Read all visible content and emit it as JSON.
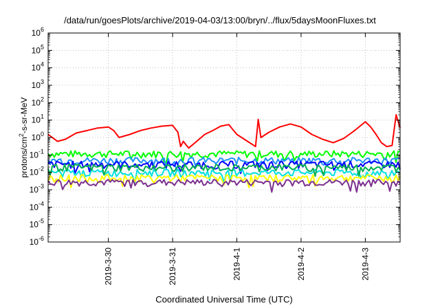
{
  "chart_data": {
    "type": "line",
    "title": "/data/run/goesPlots/archive/2019-04-03/13:00/bryn/../flux/5daysMoonFluxes.txt",
    "xlabel": "Coordinated Universal Time (UTC)",
    "ylabel_parts": [
      "protons/cm",
      "2",
      "-s-sr-MeV"
    ],
    "yscale": "log",
    "ylim": [
      1e-06,
      1000000.0
    ],
    "xlim": [
      "2019-03-29 01:30",
      "2019-04-03 13:00"
    ],
    "grid": true,
    "legend": "none",
    "yticks": [
      {
        "base": "10",
        "exp": "-6",
        "value": 1e-06
      },
      {
        "base": "10",
        "exp": "-5",
        "value": 1e-05
      },
      {
        "base": "10",
        "exp": "-4",
        "value": 0.0001
      },
      {
        "base": "10",
        "exp": "-3",
        "value": 0.001
      },
      {
        "base": "10",
        "exp": "-2",
        "value": 0.01
      },
      {
        "base": "10",
        "exp": "-1",
        "value": 0.1
      },
      {
        "base": "10",
        "exp": "0",
        "value": 1
      },
      {
        "base": "10",
        "exp": "1",
        "value": 10.0
      },
      {
        "base": "10",
        "exp": "2",
        "value": 100.0
      },
      {
        "base": "10",
        "exp": "3",
        "value": 1000.0
      },
      {
        "base": "10",
        "exp": "4",
        "value": 10000.0
      },
      {
        "base": "10",
        "exp": "5",
        "value": 100000.0
      },
      {
        "base": "10",
        "exp": "6",
        "value": 1000000.0
      }
    ],
    "xticks": [
      {
        "label": "2019-3-30",
        "value": "2019-03-30 00:00"
      },
      {
        "label": "2019-3-31",
        "value": "2019-03-31 00:00"
      },
      {
        "label": "2019-4-1",
        "value": "2019-04-01 00:00"
      },
      {
        "label": "2019-4-2",
        "value": "2019-04-02 00:00"
      },
      {
        "label": "2019-4-3",
        "value": "2019-04-03 00:00"
      }
    ],
    "series": [
      {
        "color": "#ff0000",
        "values": [
          [
            "2019-03-29 01:30",
            1.5
          ],
          [
            "2019-03-29 05:00",
            0.6
          ],
          [
            "2019-03-29 08:00",
            0.8
          ],
          [
            "2019-03-29 12:00",
            1.8
          ],
          [
            "2019-03-29 16:00",
            2.5
          ],
          [
            "2019-03-29 20:00",
            3.5
          ],
          [
            "2019-03-30 00:00",
            4.0
          ],
          [
            "2019-03-30 02:00",
            2.5
          ],
          [
            "2019-03-30 04:00",
            1.0
          ],
          [
            "2019-03-30 08:00",
            1.5
          ],
          [
            "2019-03-30 12:00",
            2.5
          ],
          [
            "2019-03-30 16:00",
            3.5
          ],
          [
            "2019-03-30 20:00",
            4.5
          ],
          [
            "2019-03-31 00:00",
            5.0
          ],
          [
            "2019-03-31 02:00",
            2.0
          ],
          [
            "2019-03-31 03:00",
            0.3
          ],
          [
            "2019-03-31 04:00",
            0.6
          ],
          [
            "2019-03-31 06:00",
            0.25
          ],
          [
            "2019-03-31 09:00",
            0.6
          ],
          [
            "2019-03-31 12:00",
            1.5
          ],
          [
            "2019-03-31 15:00",
            2.5
          ],
          [
            "2019-03-31 18:00",
            4.5
          ],
          [
            "2019-03-31 21:00",
            5.5
          ],
          [
            "2019-04-01 00:00",
            1.5
          ],
          [
            "2019-04-01 04:00",
            0.6
          ],
          [
            "2019-04-01 07:00",
            0.3
          ],
          [
            "2019-04-01 08:00",
            11.0
          ],
          [
            "2019-04-01 09:00",
            1.0
          ],
          [
            "2019-04-01 12:00",
            2.0
          ],
          [
            "2019-04-01 16:00",
            4.0
          ],
          [
            "2019-04-01 20:00",
            6.0
          ],
          [
            "2019-04-02 00:00",
            4.0
          ],
          [
            "2019-04-02 04:00",
            1.5
          ],
          [
            "2019-04-02 08:00",
            0.8
          ],
          [
            "2019-04-02 12:00",
            0.5
          ],
          [
            "2019-04-02 16:00",
            0.9
          ],
          [
            "2019-04-02 20:00",
            2.5
          ],
          [
            "2019-04-03 00:00",
            8.0
          ],
          [
            "2019-04-03 02:00",
            4.0
          ],
          [
            "2019-04-03 04:00",
            1.5
          ],
          [
            "2019-04-03 06:00",
            0.5
          ],
          [
            "2019-04-03 08:00",
            0.3
          ],
          [
            "2019-04-03 10:00",
            0.35
          ],
          [
            "2019-04-03 11:30",
            20.0
          ],
          [
            "2019-04-03 13:00",
            3.5
          ]
        ]
      },
      {
        "color": "#00ff00",
        "level": 0.12
      },
      {
        "color": "#1e90ff",
        "level": 0.05
      },
      {
        "color": "#0000ff",
        "level": 0.03
      },
      {
        "color": "#00e0e0",
        "level": 0.01
      },
      {
        "color": "#00b050",
        "level": 0.02
      },
      {
        "color": "#ffff00",
        "level": 0.005
      },
      {
        "color": "#7b2f8e",
        "level": 0.0027
      }
    ]
  }
}
